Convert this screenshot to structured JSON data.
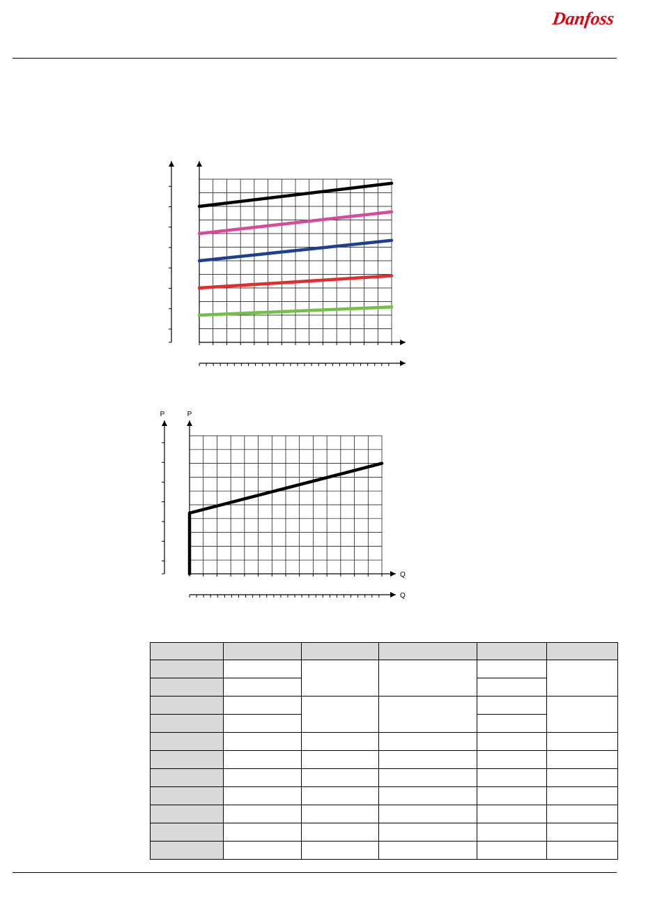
{
  "header": {
    "logo_text": "Danfoss",
    "brand_color": "#e2000f"
  },
  "chart_data": [
    {
      "type": "line",
      "title": "",
      "xlabel": "",
      "ylabel": "",
      "grid": true,
      "x": [
        0,
        14
      ],
      "ylim": [
        0,
        12
      ],
      "series": [
        {
          "color": "#000000",
          "values": [
            10.0,
            11.7
          ]
        },
        {
          "color": "#d9499c",
          "values": [
            8.0,
            9.6
          ]
        },
        {
          "color": "#1f3f93",
          "values": [
            6.0,
            7.5
          ]
        },
        {
          "color": "#e32d2d",
          "values": [
            4.0,
            4.9
          ]
        },
        {
          "color": "#74c045",
          "values": [
            2.0,
            2.6
          ]
        }
      ]
    },
    {
      "type": "line",
      "title": "",
      "xlabel": "Q",
      "ylabel": "P",
      "grid": true,
      "x": [
        0,
        0,
        14
      ],
      "ylim": [
        0,
        10
      ],
      "series": [
        {
          "color": "#000000",
          "values": [
            0,
            4.4,
            8.0
          ]
        }
      ]
    }
  ],
  "table": {
    "header_color": "#d9d9d9",
    "columns": [
      "",
      "",
      "",
      "",
      "",
      ""
    ],
    "rows": [
      [
        "",
        "",
        "",
        "",
        "",
        ""
      ],
      [
        "",
        "",
        "",
        "",
        "",
        ""
      ],
      [
        "",
        "",
        "",
        "",
        "",
        ""
      ],
      [
        "",
        "",
        "",
        "",
        "",
        ""
      ],
      [
        "",
        "",
        "",
        "",
        "",
        ""
      ],
      [
        "",
        "",
        "",
        "",
        "",
        ""
      ],
      [
        "",
        "",
        "",
        "",
        "",
        ""
      ],
      [
        "",
        "",
        "",
        "",
        "",
        ""
      ],
      [
        "",
        "",
        "",
        "",
        "",
        ""
      ],
      [
        "",
        "",
        "",
        "",
        "",
        ""
      ],
      [
        "",
        "",
        "",
        "",
        "",
        ""
      ]
    ]
  }
}
